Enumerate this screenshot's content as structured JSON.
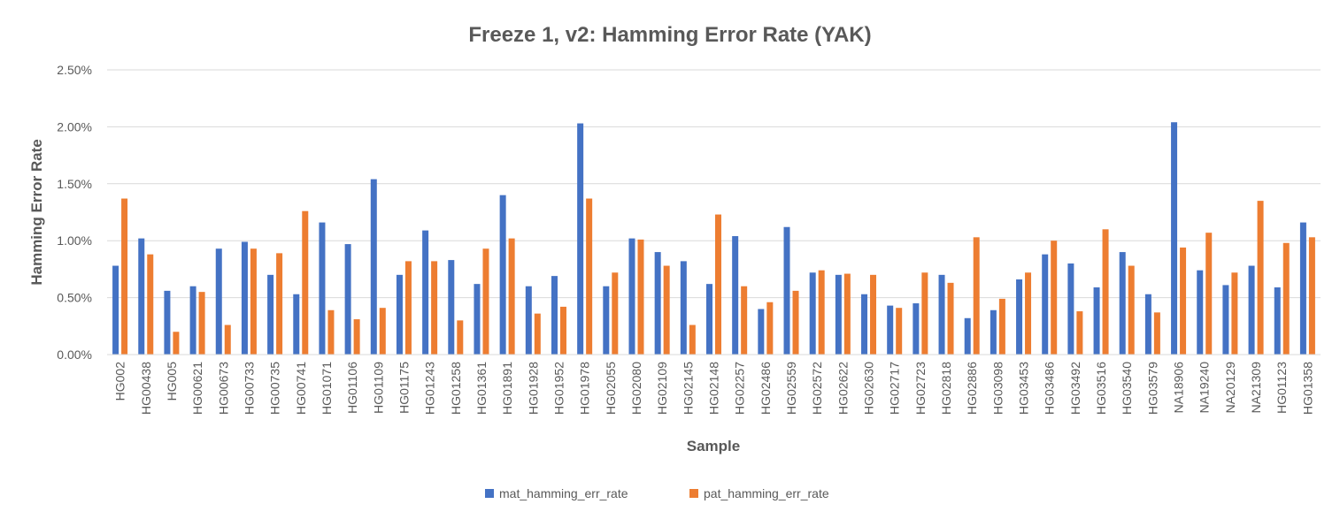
{
  "chart_data": {
    "type": "bar",
    "title": "Freeze 1, v2: Hamming Error Rate (YAK)",
    "xlabel": "Sample",
    "ylabel": "Hamming Error Rate",
    "ylim": [
      0,
      2.5
    ],
    "yticks": [
      "0.00%",
      "0.50%",
      "1.00%",
      "1.50%",
      "2.00%",
      "2.50%"
    ],
    "grid": true,
    "legend_position": "bottom",
    "categories": [
      "HG002",
      "HG00438",
      "HG005",
      "HG00621",
      "HG00673",
      "HG00733",
      "HG00735",
      "HG00741",
      "HG01071",
      "HG01106",
      "HG01109",
      "HG01175",
      "HG01243",
      "HG01258",
      "HG01361",
      "HG01891",
      "HG01928",
      "HG01952",
      "HG01978",
      "HG02055",
      "HG02080",
      "HG02109",
      "HG02145",
      "HG02148",
      "HG02257",
      "HG02486",
      "HG02559",
      "HG02572",
      "HG02622",
      "HG02630",
      "HG02717",
      "HG02723",
      "HG02818",
      "HG02886",
      "HG03098",
      "HG03453",
      "HG03486",
      "HG03492",
      "HG03516",
      "HG03540",
      "HG03579",
      "NA18906",
      "NA19240",
      "NA20129",
      "NA21309",
      "HG01123",
      "HG01358"
    ],
    "series": [
      {
        "name": "mat_hamming_err_rate",
        "color": "#4472C4",
        "values": [
          0.78,
          1.02,
          0.56,
          0.6,
          0.93,
          0.99,
          0.7,
          0.53,
          1.16,
          0.97,
          1.54,
          0.7,
          1.09,
          0.83,
          0.62,
          1.4,
          0.6,
          0.69,
          2.03,
          0.6,
          1.02,
          0.9,
          0.82,
          0.62,
          1.04,
          0.4,
          1.12,
          0.72,
          0.7,
          0.53,
          0.43,
          0.45,
          0.7,
          0.32,
          0.39,
          0.66,
          0.88,
          0.8,
          0.59,
          0.9,
          0.53,
          2.04,
          0.74,
          0.61,
          0.78,
          0.59,
          1.16
        ]
      },
      {
        "name": "pat_hamming_err_rate",
        "color": "#ED7D31",
        "values": [
          1.37,
          0.88,
          0.2,
          0.55,
          0.26,
          0.93,
          0.89,
          1.26,
          0.39,
          0.31,
          0.41,
          0.82,
          0.82,
          0.3,
          0.93,
          1.02,
          0.36,
          0.42,
          1.37,
          0.72,
          1.01,
          0.78,
          0.26,
          1.23,
          0.6,
          0.46,
          0.56,
          0.74,
          0.71,
          0.7,
          0.41,
          0.72,
          0.63,
          1.03,
          0.49,
          0.72,
          1.0,
          0.38,
          1.1,
          0.78,
          0.37,
          0.94,
          1.07,
          0.72,
          1.35,
          0.98,
          1.03
        ]
      }
    ]
  }
}
